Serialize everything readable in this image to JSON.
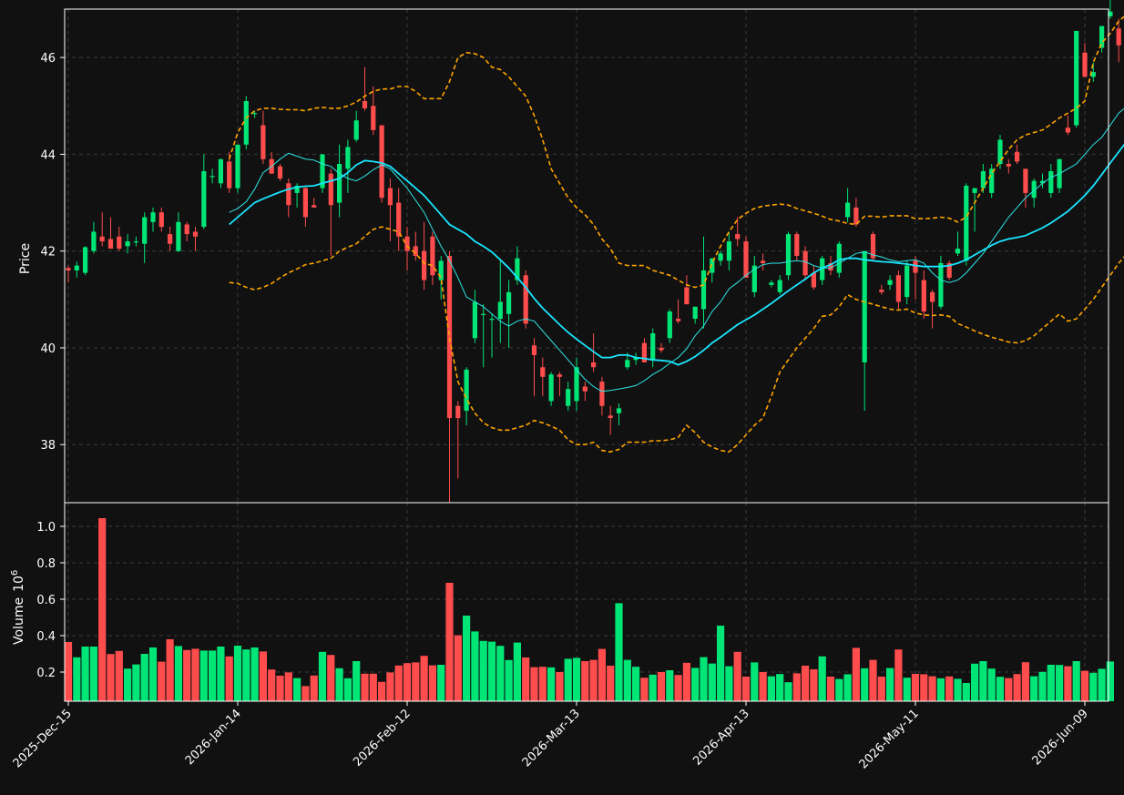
{
  "chart_data": {
    "type": "candlestick",
    "ylabel_price": "Price",
    "ylabel_volume": "Volume",
    "volume_exponent": "10",
    "volume_exponent_power": "6",
    "price_ylim": [
      36.8,
      47.0
    ],
    "price_yticks": [
      "38",
      "40",
      "42",
      "44",
      "46"
    ],
    "volume_ylim": [
      0.04,
      1.13
    ],
    "volume_yticks": [
      "0.2",
      "0.4",
      "0.6",
      "0.8",
      "1.0"
    ],
    "x_tick_labels": [
      "2025-Dec-15",
      "2026-Jan-14",
      "2026-Feb-12",
      "2026-Mar-13",
      "2026-Apr-13",
      "2026-May-11",
      "2026-Jun-09"
    ],
    "x_tick_index": [
      0,
      20,
      40,
      60,
      80,
      100,
      120
    ],
    "colors": {
      "up": "#00e676",
      "down": "#ff4d4d",
      "background": "#111111",
      "axis_face": "#111111",
      "spine": "#ffffff",
      "grid": "#3a3a3a",
      "ma_short": "#2ee6e6",
      "ma_long": "#19e6ff",
      "band": "#ffa500"
    },
    "grid": true,
    "series_ohlc": [
      [
        41.65,
        41.7,
        41.35,
        41.6
      ],
      [
        41.6,
        41.78,
        41.45,
        41.7
      ],
      [
        41.55,
        42.1,
        41.5,
        42.08
      ],
      [
        42.0,
        42.6,
        41.95,
        42.4
      ],
      [
        42.3,
        42.8,
        42.1,
        42.2
      ],
      [
        42.25,
        42.7,
        42.05,
        42.05
      ],
      [
        42.3,
        42.5,
        42.0,
        42.05
      ],
      [
        42.1,
        42.35,
        41.95,
        42.2
      ],
      [
        42.2,
        42.3,
        42.1,
        42.2
      ],
      [
        42.15,
        42.8,
        41.75,
        42.7
      ],
      [
        42.6,
        42.9,
        42.4,
        42.8
      ],
      [
        42.8,
        42.9,
        42.4,
        42.5
      ],
      [
        42.35,
        42.5,
        42.0,
        42.15
      ],
      [
        42.0,
        42.8,
        41.98,
        42.6
      ],
      [
        42.55,
        42.6,
        42.2,
        42.35
      ],
      [
        42.4,
        42.5,
        42.0,
        42.3
      ],
      [
        42.5,
        44.0,
        42.45,
        43.65
      ],
      [
        43.55,
        43.7,
        43.4,
        43.55
      ],
      [
        43.4,
        43.9,
        43.3,
        43.9
      ],
      [
        43.85,
        44.05,
        43.2,
        43.3
      ],
      [
        43.3,
        44.2,
        43.2,
        44.2
      ],
      [
        44.2,
        45.2,
        44.1,
        45.1
      ],
      [
        44.85,
        44.9,
        44.75,
        44.85
      ],
      [
        44.6,
        44.9,
        43.8,
        43.9
      ],
      [
        43.9,
        44.05,
        43.6,
        43.6
      ],
      [
        43.75,
        43.8,
        43.45,
        43.5
      ],
      [
        43.4,
        43.5,
        42.7,
        42.95
      ],
      [
        43.2,
        43.4,
        42.9,
        43.35
      ],
      [
        43.3,
        43.35,
        42.5,
        42.7
      ],
      [
        42.95,
        43.1,
        42.9,
        42.9
      ],
      [
        43.3,
        44.0,
        43.2,
        44.0
      ],
      [
        43.6,
        43.7,
        41.9,
        42.95
      ],
      [
        43.0,
        44.2,
        42.7,
        43.8
      ],
      [
        43.7,
        44.3,
        43.2,
        44.15
      ],
      [
        44.3,
        44.9,
        44.25,
        44.7
      ],
      [
        45.1,
        45.8,
        44.9,
        44.95
      ],
      [
        45.0,
        45.4,
        44.4,
        44.5
      ],
      [
        44.6,
        44.6,
        43.0,
        43.1
      ],
      [
        43.3,
        43.5,
        42.2,
        42.95
      ],
      [
        43.0,
        43.3,
        42.0,
        42.3
      ],
      [
        42.3,
        42.5,
        41.6,
        42.0
      ],
      [
        42.1,
        42.4,
        41.8,
        41.9
      ],
      [
        42.0,
        42.6,
        41.2,
        41.4
      ],
      [
        42.3,
        42.4,
        41.3,
        41.5
      ],
      [
        41.4,
        41.9,
        41.0,
        41.8
      ],
      [
        41.9,
        42.0,
        36.4,
        38.55
      ],
      [
        38.8,
        38.9,
        37.3,
        38.55
      ],
      [
        38.7,
        39.6,
        38.4,
        39.55
      ],
      [
        40.2,
        41.2,
        40.1,
        40.95
      ],
      [
        40.7,
        40.9,
        39.6,
        40.7
      ],
      [
        40.6,
        40.7,
        39.8,
        40.6
      ],
      [
        40.6,
        41.8,
        40.1,
        40.95
      ],
      [
        40.7,
        41.4,
        40.0,
        41.15
      ],
      [
        41.4,
        42.1,
        41.3,
        41.85
      ],
      [
        41.5,
        41.6,
        40.4,
        40.5
      ],
      [
        40.05,
        40.2,
        39.0,
        39.85
      ],
      [
        39.6,
        39.8,
        39.0,
        39.4
      ],
      [
        38.9,
        39.5,
        38.8,
        39.45
      ],
      [
        39.45,
        39.5,
        39.0,
        39.4
      ],
      [
        38.8,
        39.3,
        38.7,
        39.15
      ],
      [
        38.9,
        39.8,
        38.7,
        39.6
      ],
      [
        39.2,
        39.3,
        38.9,
        39.1
      ],
      [
        39.7,
        40.3,
        39.5,
        39.6
      ],
      [
        39.3,
        39.4,
        38.6,
        38.8
      ],
      [
        38.6,
        38.8,
        38.2,
        38.55
      ],
      [
        38.65,
        38.85,
        38.4,
        38.75
      ],
      [
        39.6,
        39.9,
        39.55,
        39.75
      ],
      [
        39.75,
        39.9,
        39.65,
        39.8
      ],
      [
        40.1,
        40.2,
        39.7,
        39.7
      ],
      [
        39.75,
        40.4,
        39.6,
        40.3
      ],
      [
        40.0,
        40.1,
        39.9,
        39.95
      ],
      [
        40.2,
        40.8,
        40.1,
        40.75
      ],
      [
        40.6,
        41.0,
        40.5,
        40.55
      ],
      [
        41.25,
        41.5,
        40.9,
        40.9
      ],
      [
        40.6,
        40.85,
        40.5,
        40.85
      ],
      [
        40.8,
        42.3,
        40.4,
        41.6
      ],
      [
        41.55,
        41.85,
        41.35,
        41.85
      ],
      [
        41.8,
        42.0,
        41.7,
        41.95
      ],
      [
        41.8,
        42.4,
        41.6,
        42.2
      ],
      [
        42.35,
        42.7,
        42.1,
        42.25
      ],
      [
        42.2,
        42.3,
        41.45,
        41.45
      ],
      [
        41.15,
        41.9,
        41.05,
        41.7
      ],
      [
        41.8,
        41.95,
        41.6,
        41.75
      ],
      [
        41.3,
        41.4,
        41.25,
        41.35
      ],
      [
        41.15,
        41.5,
        41.1,
        41.4
      ],
      [
        41.5,
        42.4,
        41.4,
        42.35
      ],
      [
        42.35,
        42.4,
        41.8,
        41.9
      ],
      [
        42.0,
        42.1,
        41.4,
        41.5
      ],
      [
        41.55,
        41.7,
        41.2,
        41.25
      ],
      [
        41.4,
        41.9,
        41.3,
        41.85
      ],
      [
        41.75,
        41.9,
        41.5,
        41.6
      ],
      [
        41.55,
        42.2,
        41.45,
        42.15
      ],
      [
        42.7,
        43.3,
        42.6,
        43.0
      ],
      [
        42.9,
        43.1,
        42.5,
        42.55
      ],
      [
        39.7,
        42.0,
        38.7,
        42.0
      ],
      [
        42.35,
        42.4,
        41.8,
        41.85
      ],
      [
        41.2,
        41.3,
        41.1,
        41.15
      ],
      [
        41.3,
        41.5,
        41.2,
        41.4
      ],
      [
        41.5,
        41.6,
        40.8,
        40.95
      ],
      [
        41.05,
        41.8,
        40.9,
        41.7
      ],
      [
        41.8,
        41.9,
        41.0,
        41.55
      ],
      [
        41.4,
        41.6,
        40.6,
        40.75
      ],
      [
        41.15,
        41.2,
        40.4,
        40.95
      ],
      [
        40.85,
        41.9,
        40.8,
        41.75
      ],
      [
        41.75,
        41.8,
        41.4,
        41.45
      ],
      [
        41.95,
        42.4,
        41.9,
        42.05
      ],
      [
        41.8,
        43.4,
        41.7,
        43.35
      ],
      [
        43.2,
        43.3,
        42.4,
        43.3
      ],
      [
        43.3,
        43.8,
        43.2,
        43.65
      ],
      [
        43.2,
        43.8,
        43.1,
        43.7
      ],
      [
        43.8,
        44.4,
        43.7,
        44.3
      ],
      [
        43.8,
        43.9,
        43.6,
        43.75
      ],
      [
        44.05,
        44.2,
        43.8,
        43.85
      ],
      [
        43.7,
        43.7,
        42.9,
        43.2
      ],
      [
        43.1,
        43.5,
        42.9,
        43.45
      ],
      [
        43.4,
        43.6,
        43.3,
        43.45
      ],
      [
        43.2,
        43.8,
        43.1,
        43.65
      ],
      [
        43.3,
        43.9,
        43.2,
        43.9
      ],
      [
        44.55,
        44.8,
        44.4,
        44.45
      ],
      [
        44.6,
        46.55,
        44.55,
        46.55
      ],
      [
        46.1,
        46.3,
        45.6,
        45.6
      ],
      [
        45.6,
        45.9,
        45.5,
        45.7
      ],
      [
        46.2,
        46.6,
        46.1,
        46.65
      ],
      [
        46.85,
        47.2,
        46.8,
        46.95
      ],
      [
        46.6,
        46.8,
        45.9,
        46.25
      ]
    ],
    "series_volume": [
      0.365,
      0.281,
      0.34,
      0.34,
      1.045,
      0.299,
      0.316,
      0.219,
      0.242,
      0.3,
      0.335,
      0.257,
      0.38,
      0.343,
      0.321,
      0.328,
      0.318,
      0.318,
      0.34,
      0.286,
      0.345,
      0.324,
      0.335,
      0.313,
      0.214,
      0.18,
      0.198,
      0.167,
      0.123,
      0.181,
      0.311,
      0.294,
      0.221,
      0.166,
      0.26,
      0.191,
      0.191,
      0.146,
      0.198,
      0.236,
      0.249,
      0.253,
      0.289,
      0.237,
      0.24,
      0.69,
      0.402,
      0.51,
      0.423,
      0.371,
      0.367,
      0.344,
      0.266,
      0.362,
      0.28,
      0.227,
      0.229,
      0.226,
      0.2,
      0.273,
      0.278,
      0.26,
      0.267,
      0.327,
      0.235,
      0.578,
      0.267,
      0.229,
      0.169,
      0.186,
      0.2,
      0.21,
      0.184,
      0.251,
      0.223,
      0.282,
      0.247,
      0.455,
      0.232,
      0.311,
      0.175,
      0.253,
      0.2,
      0.177,
      0.189,
      0.144,
      0.193,
      0.235,
      0.215,
      0.286,
      0.175,
      0.162,
      0.188,
      0.333,
      0.221,
      0.267,
      0.175,
      0.222,
      0.324,
      0.169,
      0.19,
      0.188,
      0.177,
      0.166,
      0.176,
      0.163,
      0.14,
      0.246,
      0.26,
      0.219,
      0.174,
      0.167,
      0.189,
      0.254,
      0.177,
      0.201,
      0.24,
      0.239,
      0.232,
      0.26,
      0.207,
      0.196,
      0.218,
      0.258
    ],
    "ma_short": [
      null,
      null,
      null,
      null,
      null,
      null,
      null,
      null,
      null,
      null,
      null,
      null,
      null,
      null,
      null,
      null,
      null,
      null,
      null,
      42.8,
      42.88,
      43.02,
      43.28,
      43.62,
      43.75,
      43.9,
      44.02,
      43.96,
      43.9,
      43.88,
      43.8,
      43.75,
      43.6,
      43.5,
      43.45,
      43.55,
      43.68,
      43.78,
      43.7,
      43.5,
      43.3,
      43.05,
      42.8,
      42.45,
      42.1,
      41.8,
      41.45,
      41.05,
      40.95,
      40.85,
      40.7,
      40.55,
      40.45,
      40.55,
      40.6,
      40.55,
      40.35,
      40.15,
      39.95,
      39.75,
      39.55,
      39.35,
      39.2,
      39.1,
      39.12,
      39.15,
      39.18,
      39.22,
      39.32,
      39.45,
      39.55,
      39.68,
      39.8,
      39.98,
      40.25,
      40.45,
      40.75,
      40.95,
      41.22,
      41.35,
      41.5,
      41.62,
      41.72,
      41.75,
      41.75,
      41.78,
      41.8,
      41.78,
      41.7,
      41.65,
      41.65,
      41.75,
      41.85,
      41.95,
      41.98,
      41.92,
      41.88,
      41.82,
      41.78,
      41.8,
      41.82,
      41.75,
      41.55,
      41.4,
      41.35,
      41.4,
      41.55,
      41.75,
      41.95,
      42.2,
      42.45,
      42.7,
      42.9,
      43.1,
      43.25,
      43.4,
      43.52,
      43.6,
      43.7,
      43.8,
      44.0,
      44.2,
      44.35,
      44.6,
      44.85,
      45.0,
      45.1,
      45.28
    ],
    "ma_long": [
      null,
      null,
      null,
      null,
      null,
      null,
      null,
      null,
      null,
      null,
      null,
      null,
      null,
      null,
      null,
      null,
      null,
      null,
      null,
      42.55,
      42.7,
      42.85,
      43.0,
      43.08,
      43.15,
      43.22,
      43.28,
      43.32,
      43.34,
      43.35,
      43.4,
      43.45,
      43.5,
      43.62,
      43.78,
      43.87,
      43.85,
      43.82,
      43.75,
      43.6,
      43.45,
      43.3,
      43.15,
      42.95,
      42.75,
      42.55,
      42.45,
      42.35,
      42.2,
      42.1,
      41.98,
      41.82,
      41.65,
      41.45,
      41.25,
      41.02,
      40.82,
      40.65,
      40.48,
      40.32,
      40.18,
      40.05,
      39.92,
      39.8,
      39.8,
      39.85,
      39.85,
      39.8,
      39.78,
      39.75,
      39.74,
      39.72,
      39.65,
      39.72,
      39.82,
      39.95,
      40.1,
      40.22,
      40.35,
      40.48,
      40.58,
      40.68,
      40.8,
      40.92,
      41.05,
      41.18,
      41.3,
      41.42,
      41.55,
      41.65,
      41.72,
      41.82,
      41.85,
      41.85,
      41.82,
      41.8,
      41.78,
      41.77,
      41.75,
      41.73,
      41.7,
      41.68,
      41.68,
      41.68,
      41.7,
      41.75,
      41.82,
      41.92,
      42.02,
      42.12,
      42.2,
      42.25,
      42.28,
      42.32,
      42.4,
      42.48,
      42.58,
      42.7,
      42.82,
      42.98,
      43.15,
      43.35,
      43.58,
      43.82,
      44.05,
      44.28,
      44.5,
      44.72
    ],
    "band_upper": [
      null,
      null,
      null,
      null,
      null,
      null,
      null,
      null,
      null,
      null,
      null,
      null,
      null,
      null,
      null,
      null,
      null,
      null,
      null,
      43.9,
      44.45,
      44.75,
      44.9,
      44.95,
      44.95,
      44.93,
      44.92,
      44.92,
      44.9,
      44.95,
      44.97,
      44.95,
      44.95,
      45.0,
      45.08,
      45.2,
      45.3,
      45.35,
      45.35,
      45.4,
      45.4,
      45.3,
      45.15,
      45.15,
      45.15,
      45.5,
      46.0,
      46.1,
      46.08,
      46.0,
      45.8,
      45.75,
      45.6,
      45.4,
      45.2,
      44.8,
      44.3,
      43.7,
      43.4,
      43.1,
      42.9,
      42.75,
      42.55,
      42.25,
      42.05,
      41.75,
      41.7,
      41.7,
      41.7,
      41.6,
      41.55,
      41.5,
      41.4,
      41.3,
      41.25,
      41.3,
      41.75,
      42.1,
      42.4,
      42.65,
      42.78,
      42.88,
      42.93,
      42.95,
      42.97,
      42.95,
      42.88,
      42.83,
      42.78,
      42.72,
      42.65,
      42.62,
      42.57,
      42.55,
      42.72,
      42.72,
      42.7,
      42.73,
      42.73,
      42.73,
      42.67,
      42.67,
      42.68,
      42.7,
      42.68,
      42.6,
      42.7,
      43.0,
      43.3,
      43.6,
      43.85,
      44.1,
      44.3,
      44.4,
      44.45,
      44.5,
      44.62,
      44.75,
      44.85,
      44.95,
      45.1,
      45.9,
      46.3,
      46.5,
      46.75,
      46.9,
      46.95,
      47.0
    ],
    "band_lower": [
      null,
      null,
      null,
      null,
      null,
      null,
      null,
      null,
      null,
      null,
      null,
      null,
      null,
      null,
      null,
      null,
      null,
      null,
      null,
      41.35,
      41.33,
      41.25,
      41.2,
      41.25,
      41.33,
      41.45,
      41.55,
      41.63,
      41.72,
      41.75,
      41.8,
      41.85,
      42.0,
      42.08,
      42.15,
      42.3,
      42.45,
      42.5,
      42.45,
      42.4,
      42.1,
      41.95,
      41.75,
      41.7,
      41.45,
      40.2,
      39.3,
      38.95,
      38.65,
      38.45,
      38.35,
      38.3,
      38.3,
      38.35,
      38.4,
      38.5,
      38.45,
      38.38,
      38.3,
      38.1,
      38.0,
      38.0,
      38.05,
      37.88,
      37.85,
      37.9,
      38.05,
      38.05,
      38.05,
      38.08,
      38.08,
      38.1,
      38.15,
      38.4,
      38.25,
      38.05,
      37.95,
      37.88,
      37.85,
      38.0,
      38.2,
      38.4,
      38.55,
      39.0,
      39.5,
      39.75,
      40.0,
      40.2,
      40.4,
      40.65,
      40.68,
      40.85,
      41.1,
      41.0,
      40.95,
      40.9,
      40.85,
      40.8,
      40.78,
      40.8,
      40.72,
      40.68,
      40.67,
      40.68,
      40.65,
      40.5,
      40.43,
      40.35,
      40.28,
      40.22,
      40.17,
      40.12,
      40.1,
      40.15,
      40.25,
      40.4,
      40.55,
      40.7,
      40.55,
      40.6,
      40.8,
      41.0,
      41.25,
      41.5,
      41.75,
      41.95,
      42.1,
      42.25
    ]
  }
}
